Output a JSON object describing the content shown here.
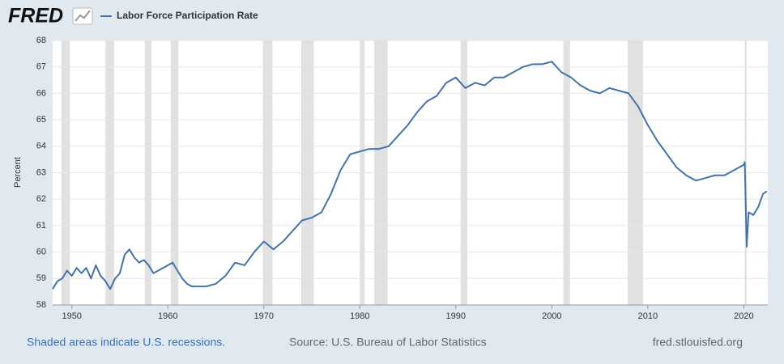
{
  "logo": "FRED",
  "chart_data": {
    "type": "line",
    "ylabel": "Percent",
    "x": [
      1948,
      1948.5,
      1949,
      1949.5,
      1950,
      1950.5,
      1951,
      1951.5,
      1952,
      1952.5,
      1953,
      1953.5,
      1954,
      1954.5,
      1955,
      1955.5,
      1956,
      1956.5,
      1957,
      1957.5,
      1958,
      1958.5,
      1959,
      1959.5,
      1960,
      1960.5,
      1961,
      1961.5,
      1962,
      1962.5,
      1963,
      1964,
      1965,
      1966,
      1967,
      1968,
      1969,
      1970,
      1971,
      1972,
      1973,
      1974,
      1975,
      1976,
      1977,
      1978,
      1979,
      1980,
      1981,
      1982,
      1983,
      1984,
      1985,
      1986,
      1987,
      1988,
      1989,
      1990,
      1991,
      1992,
      1993,
      1994,
      1995,
      1996,
      1997,
      1998,
      1999,
      2000,
      2001,
      2002,
      2003,
      2004,
      2005,
      2006,
      2007,
      2008,
      2009,
      2010,
      2011,
      2012,
      2013,
      2014,
      2015,
      2016,
      2017,
      2018,
      2019,
      2020,
      2020.1,
      2020.3,
      2020.5,
      2021,
      2021.5,
      2022,
      2022.4
    ],
    "series": [
      {
        "name": "Labor Force Participation Rate",
        "color": "#4572a7",
        "values": [
          58.6,
          58.9,
          59.0,
          59.3,
          59.1,
          59.4,
          59.2,
          59.4,
          59.0,
          59.5,
          59.1,
          58.9,
          58.6,
          59.0,
          59.2,
          59.9,
          60.1,
          59.8,
          59.6,
          59.7,
          59.5,
          59.2,
          59.3,
          59.4,
          59.5,
          59.6,
          59.3,
          59.0,
          58.8,
          58.7,
          58.7,
          58.7,
          58.8,
          59.1,
          59.6,
          59.5,
          60.0,
          60.4,
          60.1,
          60.4,
          60.8,
          61.2,
          61.3,
          61.5,
          62.2,
          63.1,
          63.7,
          63.8,
          63.9,
          63.9,
          64.0,
          64.4,
          64.8,
          65.3,
          65.7,
          65.9,
          66.4,
          66.6,
          66.2,
          66.4,
          66.3,
          66.6,
          66.6,
          66.8,
          67.0,
          67.1,
          67.1,
          67.2,
          66.8,
          66.6,
          66.3,
          66.1,
          66.0,
          66.2,
          66.1,
          66.0,
          65.5,
          64.8,
          64.2,
          63.7,
          63.2,
          62.9,
          62.7,
          62.8,
          62.9,
          62.9,
          63.1,
          63.3,
          63.4,
          60.2,
          61.5,
          61.4,
          61.7,
          62.2,
          62.3
        ]
      }
    ],
    "recessions": [
      [
        1948.9,
        1949.8
      ],
      [
        1953.5,
        1954.4
      ],
      [
        1957.6,
        1958.3
      ],
      [
        1960.3,
        1961.1
      ],
      [
        1969.9,
        1970.9
      ],
      [
        1973.9,
        1975.2
      ],
      [
        1980.0,
        1980.5
      ],
      [
        1981.5,
        1982.9
      ],
      [
        1990.5,
        1991.2
      ],
      [
        2001.2,
        2001.9
      ],
      [
        2007.9,
        2009.5
      ],
      [
        2020.1,
        2020.3
      ]
    ],
    "xlim": [
      1948,
      2022.5
    ],
    "xticks": [
      1950,
      1960,
      1970,
      1980,
      1990,
      2000,
      2010,
      2020
    ],
    "ylim": [
      58,
      68
    ],
    "yticks": [
      58,
      59,
      60,
      61,
      62,
      63,
      64,
      65,
      66,
      67,
      68
    ],
    "grid": true,
    "note": "Shaded areas indicate U.S. recessions.",
    "source": "Source: U.S. Bureau of Labor Statistics",
    "site": "fred.stlouisfed.org"
  }
}
